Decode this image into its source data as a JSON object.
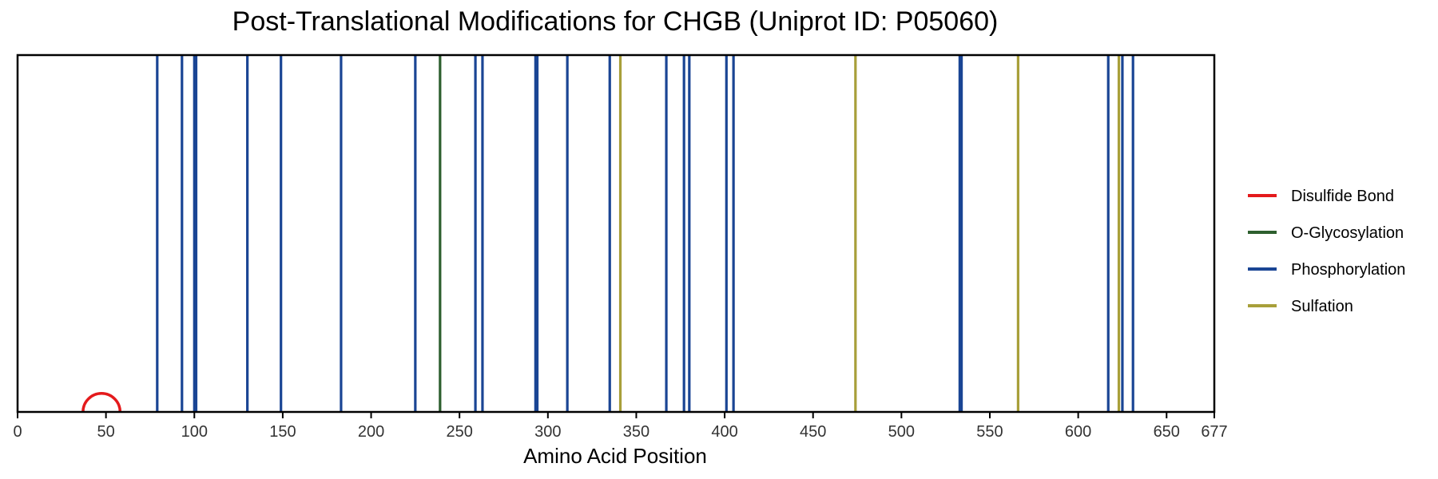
{
  "chart_data": {
    "type": "ptm-track",
    "title": "Post-Translational Modifications for CHGB (Uniprot ID: P05060)",
    "xlabel": "Amino Acid Position",
    "xlim": [
      0,
      677
    ],
    "xticks": [
      0,
      50,
      100,
      150,
      200,
      250,
      300,
      350,
      400,
      450,
      500,
      550,
      600,
      650,
      677
    ],
    "colors": {
      "Disulfide Bond": "#e41a1c",
      "O-Glycosylation": "#2d5f2e",
      "Phosphorylation": "#1a4594",
      "Sulfation": "#a89f3a"
    },
    "legend": [
      "Disulfide Bond",
      "O-Glycosylation",
      "Phosphorylation",
      "Sulfation"
    ],
    "legend_position": "right",
    "disulfide_bonds": [
      [
        37,
        58
      ]
    ],
    "series": [
      {
        "name": "Phosphorylation",
        "positions": [
          79,
          93,
          100,
          101,
          130,
          149,
          183,
          225,
          259,
          263,
          293,
          294,
          311,
          335,
          367,
          377,
          380,
          401,
          405,
          533,
          534,
          617,
          625,
          631
        ]
      },
      {
        "name": "O-Glycosylation",
        "positions": [
          239
        ]
      },
      {
        "name": "Sulfation",
        "positions": [
          341,
          474,
          566,
          623
        ]
      }
    ]
  }
}
